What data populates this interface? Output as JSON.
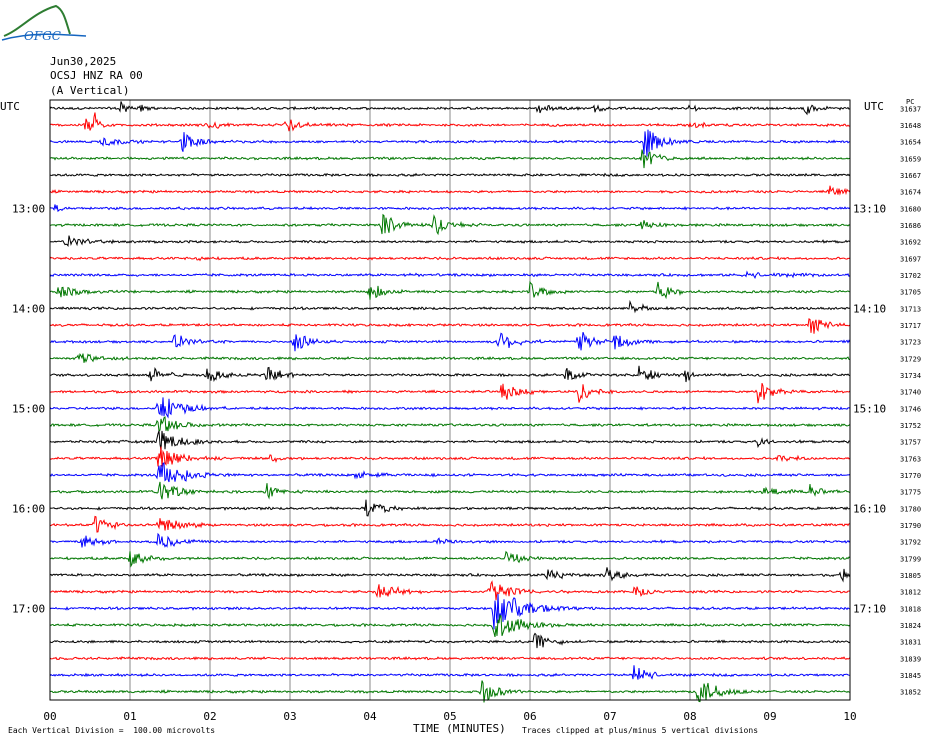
{
  "logo": {
    "text": "OFGC"
  },
  "header": {
    "date": "Jun30,2025",
    "station": "OCSJ HNZ RA 00",
    "component": "(A Vertical)"
  },
  "chart_data": {
    "type": "line",
    "kind": "helicorder",
    "left_label": "UTC",
    "right_label": "UTC",
    "right_column_header": "PC",
    "xlabel": "TIME (MINUTES)",
    "xlim": [
      0,
      10
    ],
    "x_ticks": [
      "00",
      "01",
      "02",
      "03",
      "04",
      "05",
      "06",
      "07",
      "08",
      "09",
      "10"
    ],
    "left_time_labels": [
      {
        "row": 6,
        "text": "13:00"
      },
      {
        "row": 12,
        "text": "14:00"
      },
      {
        "row": 18,
        "text": "15:00"
      },
      {
        "row": 24,
        "text": "16:00"
      },
      {
        "row": 30,
        "text": "17:00"
      }
    ],
    "right_time_labels": [
      {
        "row": 6,
        "text": "13:10"
      },
      {
        "row": 12,
        "text": "14:10"
      },
      {
        "row": 18,
        "text": "15:10"
      },
      {
        "row": 24,
        "text": "16:10"
      },
      {
        "row": 30,
        "text": "17:10"
      }
    ],
    "row_values": [
      "31637",
      "31648",
      "31654",
      "31659",
      "31667",
      "31674",
      "31680",
      "31686",
      "31692",
      "31697",
      "31702",
      "31705",
      "31713",
      "31717",
      "31723",
      "31729",
      "31734",
      "31740",
      "31746",
      "31752",
      "31757",
      "31763",
      "31770",
      "31775",
      "31780",
      "31790",
      "31792",
      "31799",
      "31805",
      "31812",
      "31818",
      "31824",
      "31831",
      "31839",
      "31845",
      "31852"
    ],
    "trace_colors": [
      "#000000",
      "#ff0000",
      "#0000ff",
      "#007700"
    ],
    "events": [
      {
        "row": 0,
        "t": 0.88,
        "amp": 8,
        "dur": 0.15
      },
      {
        "row": 0,
        "t": 1.1,
        "amp": 6,
        "dur": 0.15
      },
      {
        "row": 0,
        "t": 6.1,
        "amp": 5,
        "dur": 0.3
      },
      {
        "row": 0,
        "t": 6.8,
        "amp": 4,
        "dur": 0.2
      },
      {
        "row": 0,
        "t": 9.45,
        "amp": 7,
        "dur": 0.2
      },
      {
        "row": 0,
        "t": 8.0,
        "amp": 4,
        "dur": 0.2
      },
      {
        "row": 1,
        "t": 0.45,
        "amp": 9,
        "dur": 0.15
      },
      {
        "row": 1,
        "t": 0.55,
        "amp": 14,
        "dur": 0.1
      },
      {
        "row": 1,
        "t": 1.95,
        "amp": 5,
        "dur": 0.3
      },
      {
        "row": 1,
        "t": 2.95,
        "amp": 8,
        "dur": 0.3
      },
      {
        "row": 1,
        "t": 8.0,
        "amp": 4,
        "dur": 0.3
      },
      {
        "row": 2,
        "t": 0.65,
        "amp": 7,
        "dur": 0.3
      },
      {
        "row": 2,
        "t": 1.65,
        "amp": 11,
        "dur": 0.3
      },
      {
        "row": 2,
        "t": 7.4,
        "amp": 22,
        "dur": 0.3
      },
      {
        "row": 3,
        "t": 7.4,
        "amp": 12,
        "dur": 0.3
      },
      {
        "row": 5,
        "t": 9.75,
        "amp": 6,
        "dur": 0.3
      },
      {
        "row": 6,
        "t": 0.05,
        "amp": 4,
        "dur": 0.2
      },
      {
        "row": 7,
        "t": 4.15,
        "amp": 14,
        "dur": 0.3
      },
      {
        "row": 7,
        "t": 4.8,
        "amp": 12,
        "dur": 0.3
      },
      {
        "row": 7,
        "t": 7.4,
        "amp": 5,
        "dur": 0.3
      },
      {
        "row": 8,
        "t": 0.2,
        "amp": 7,
        "dur": 0.3
      },
      {
        "row": 9,
        "t": 1.85,
        "amp": 4,
        "dur": 0.1
      },
      {
        "row": 10,
        "t": 4.5,
        "amp": 3,
        "dur": 0.2
      },
      {
        "row": 10,
        "t": 8.7,
        "amp": 3,
        "dur": 0.8
      },
      {
        "row": 11,
        "t": 0.1,
        "amp": 7,
        "dur": 0.5
      },
      {
        "row": 11,
        "t": 4.0,
        "amp": 9,
        "dur": 0.3
      },
      {
        "row": 11,
        "t": 6.0,
        "amp": 10,
        "dur": 0.3
      },
      {
        "row": 11,
        "t": 7.6,
        "amp": 10,
        "dur": 0.3
      },
      {
        "row": 12,
        "t": 7.25,
        "amp": 9,
        "dur": 0.3
      },
      {
        "row": 13,
        "t": 9.5,
        "amp": 11,
        "dur": 0.3
      },
      {
        "row": 14,
        "t": 1.55,
        "amp": 10,
        "dur": 0.25
      },
      {
        "row": 14,
        "t": 3.05,
        "amp": 12,
        "dur": 0.3
      },
      {
        "row": 14,
        "t": 5.6,
        "amp": 12,
        "dur": 0.3
      },
      {
        "row": 14,
        "t": 6.6,
        "amp": 12,
        "dur": 0.3
      },
      {
        "row": 14,
        "t": 7.05,
        "amp": 10,
        "dur": 0.3
      },
      {
        "row": 15,
        "t": 0.35,
        "amp": 6,
        "dur": 0.4
      },
      {
        "row": 16,
        "t": 1.25,
        "amp": 9,
        "dur": 0.3
      },
      {
        "row": 16,
        "t": 1.95,
        "amp": 10,
        "dur": 0.3
      },
      {
        "row": 16,
        "t": 2.7,
        "amp": 12,
        "dur": 0.3
      },
      {
        "row": 16,
        "t": 6.45,
        "amp": 8,
        "dur": 0.3
      },
      {
        "row": 16,
        "t": 7.35,
        "amp": 10,
        "dur": 0.3
      },
      {
        "row": 16,
        "t": 7.95,
        "amp": 8,
        "dur": 0.1
      },
      {
        "row": 17,
        "t": 5.65,
        "amp": 12,
        "dur": 0.3
      },
      {
        "row": 17,
        "t": 6.6,
        "amp": 12,
        "dur": 0.3
      },
      {
        "row": 17,
        "t": 8.85,
        "amp": 12,
        "dur": 0.3
      },
      {
        "row": 18,
        "t": 1.35,
        "amp": 16,
        "dur": 0.4
      },
      {
        "row": 19,
        "t": 1.35,
        "amp": 12,
        "dur": 0.4
      },
      {
        "row": 20,
        "t": 1.35,
        "amp": 14,
        "dur": 0.4
      },
      {
        "row": 20,
        "t": 8.85,
        "amp": 6,
        "dur": 0.2
      },
      {
        "row": 21,
        "t": 1.35,
        "amp": 14,
        "dur": 0.4
      },
      {
        "row": 21,
        "t": 2.75,
        "amp": 4,
        "dur": 0.2
      },
      {
        "row": 21,
        "t": 9.1,
        "amp": 4,
        "dur": 0.3
      },
      {
        "row": 22,
        "t": 1.35,
        "amp": 16,
        "dur": 0.5
      },
      {
        "row": 22,
        "t": 3.8,
        "amp": 3,
        "dur": 0.8
      },
      {
        "row": 23,
        "t": 1.35,
        "amp": 12,
        "dur": 0.4
      },
      {
        "row": 23,
        "t": 2.7,
        "amp": 9,
        "dur": 0.3
      },
      {
        "row": 23,
        "t": 8.9,
        "amp": 6,
        "dur": 0.4
      },
      {
        "row": 23,
        "t": 9.5,
        "amp": 7,
        "dur": 0.3
      },
      {
        "row": 24,
        "t": 3.95,
        "amp": 10,
        "dur": 0.3
      },
      {
        "row": 25,
        "t": 0.55,
        "amp": 10,
        "dur": 0.3
      },
      {
        "row": 25,
        "t": 1.35,
        "amp": 10,
        "dur": 0.4
      },
      {
        "row": 26,
        "t": 0.4,
        "amp": 9,
        "dur": 0.3
      },
      {
        "row": 26,
        "t": 1.35,
        "amp": 9,
        "dur": 0.4
      },
      {
        "row": 26,
        "t": 4.85,
        "amp": 4,
        "dur": 0.3
      },
      {
        "row": 27,
        "t": 1.0,
        "amp": 9,
        "dur": 0.3
      },
      {
        "row": 27,
        "t": 5.7,
        "amp": 8,
        "dur": 0.3
      },
      {
        "row": 28,
        "t": 6.2,
        "amp": 8,
        "dur": 0.3
      },
      {
        "row": 28,
        "t": 6.95,
        "amp": 8,
        "dur": 0.3
      },
      {
        "row": 28,
        "t": 9.9,
        "amp": 9,
        "dur": 0.1
      },
      {
        "row": 29,
        "t": 4.1,
        "amp": 9,
        "dur": 0.4
      },
      {
        "row": 29,
        "t": 5.5,
        "amp": 12,
        "dur": 0.5
      },
      {
        "row": 29,
        "t": 7.3,
        "amp": 6,
        "dur": 0.3
      },
      {
        "row": 30,
        "t": 5.55,
        "amp": 20,
        "dur": 0.6
      },
      {
        "row": 31,
        "t": 5.55,
        "amp": 16,
        "dur": 0.5
      },
      {
        "row": 32,
        "t": 6.05,
        "amp": 10,
        "dur": 0.3
      },
      {
        "row": 34,
        "t": 7.3,
        "amp": 11,
        "dur": 0.3
      },
      {
        "row": 35,
        "t": 5.4,
        "amp": 12,
        "dur": 0.3
      },
      {
        "row": 35,
        "t": 8.1,
        "amp": 16,
        "dur": 0.4
      }
    ]
  },
  "footer": {
    "scale": "Each Vertical Division =  100.00 microvolts",
    "clip_note": "Traces clipped at plus/minus 5 vertical divisions"
  }
}
